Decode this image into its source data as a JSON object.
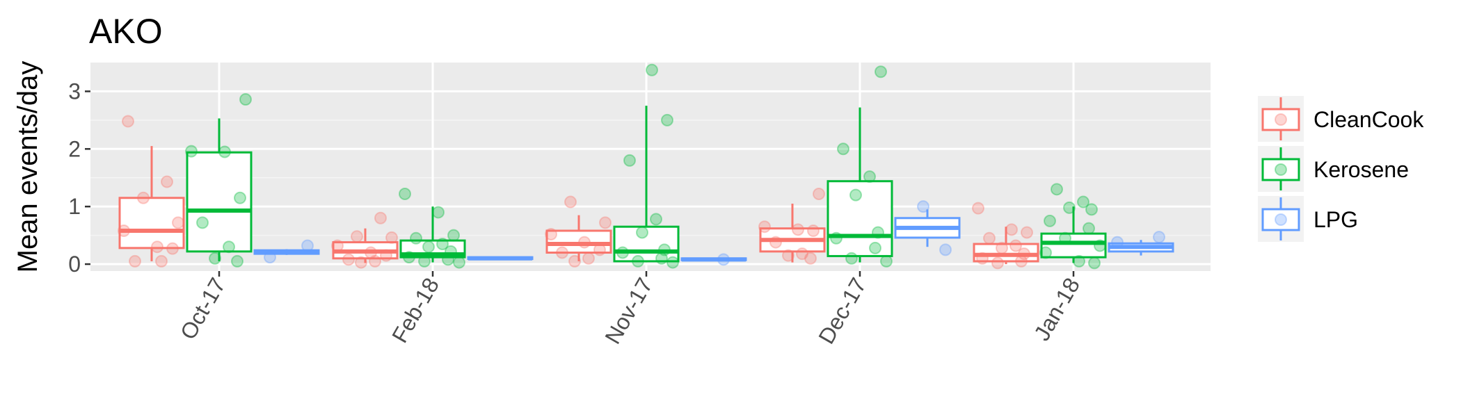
{
  "chart_data": {
    "type": "box",
    "title": "AKO",
    "xlabel": "",
    "ylabel": "Mean events/day",
    "categories": [
      "Oct-17",
      "Feb-18",
      "Nov-17",
      "Dec-17",
      "Jan-18"
    ],
    "yticks": [
      0,
      1,
      2,
      3
    ],
    "ylim": [
      -0.12,
      3.5
    ],
    "grid": true,
    "legend_placement": "right",
    "series": [
      {
        "name": "CleanCook",
        "color": "#F8766D",
        "boxes": [
          {
            "category": "Oct-17",
            "min": 0.05,
            "q1": 0.28,
            "median": 0.58,
            "q3": 1.15,
            "max": 2.05
          },
          {
            "category": "Feb-18",
            "min": 0.02,
            "q1": 0.1,
            "median": 0.22,
            "q3": 0.38,
            "max": 0.62
          },
          {
            "category": "Nov-17",
            "min": 0.05,
            "q1": 0.2,
            "median": 0.35,
            "q3": 0.58,
            "max": 0.85
          },
          {
            "category": "Dec-17",
            "min": 0.03,
            "q1": 0.22,
            "median": 0.42,
            "q3": 0.62,
            "max": 1.05
          },
          {
            "category": "Jan-18",
            "min": 0.0,
            "q1": 0.05,
            "median": 0.16,
            "q3": 0.35,
            "max": 0.65
          }
        ],
        "points": [
          {
            "category": "Oct-17",
            "y": [
              2.48,
              1.43,
              1.15,
              0.72,
              0.58,
              0.3,
              0.27,
              0.05,
              0.05
            ]
          },
          {
            "category": "Feb-18",
            "y": [
              0.8,
              0.48,
              0.46,
              0.32,
              0.2,
              0.15,
              0.08,
              0.05,
              0.03
            ]
          },
          {
            "category": "Nov-17",
            "y": [
              1.08,
              0.72,
              0.52,
              0.38,
              0.25,
              0.2,
              0.1,
              0.05
            ]
          },
          {
            "category": "Dec-17",
            "y": [
              1.22,
              0.65,
              0.6,
              0.58,
              0.38,
              0.18,
              0.15,
              0.1
            ]
          },
          {
            "category": "Jan-18",
            "y": [
              0.97,
              0.6,
              0.55,
              0.45,
              0.32,
              0.28,
              0.18,
              0.1,
              0.05,
              0.02
            ]
          }
        ]
      },
      {
        "name": "Kerosene",
        "color": "#00BA38",
        "boxes": [
          {
            "category": "Oct-17",
            "min": 0.05,
            "q1": 0.22,
            "median": 0.93,
            "q3": 1.94,
            "max": 2.53
          },
          {
            "category": "Feb-18",
            "min": 0.03,
            "q1": 0.12,
            "median": 0.17,
            "q3": 0.41,
            "max": 1.0
          },
          {
            "category": "Nov-17",
            "min": 0.03,
            "q1": 0.05,
            "median": 0.22,
            "q3": 0.65,
            "max": 2.75
          },
          {
            "category": "Dec-17",
            "min": 0.03,
            "q1": 0.14,
            "median": 0.49,
            "q3": 1.44,
            "max": 2.72
          },
          {
            "category": "Jan-18",
            "min": 0.02,
            "q1": 0.12,
            "median": 0.37,
            "q3": 0.53,
            "max": 1.0
          }
        ],
        "points": [
          {
            "category": "Oct-17",
            "y": [
              2.86,
              1.96,
              1.95,
              1.15,
              0.72,
              0.3,
              0.1,
              0.05
            ]
          },
          {
            "category": "Feb-18",
            "y": [
              1.22,
              0.9,
              0.5,
              0.45,
              0.35,
              0.3,
              0.22,
              0.12,
              0.08,
              0.05,
              0.03
            ]
          },
          {
            "category": "Nov-17",
            "y": [
              3.37,
              2.5,
              1.8,
              0.78,
              0.55,
              0.25,
              0.2,
              0.1,
              0.05,
              0.03
            ]
          },
          {
            "category": "Dec-17",
            "y": [
              3.34,
              2.0,
              1.52,
              1.2,
              0.55,
              0.45,
              0.28,
              0.1,
              0.05
            ]
          },
          {
            "category": "Jan-18",
            "y": [
              1.3,
              1.08,
              0.98,
              0.95,
              0.75,
              0.62,
              0.45,
              0.32,
              0.2,
              0.05,
              0.02
            ]
          }
        ]
      },
      {
        "name": "LPG",
        "color": "#619CFF",
        "boxes": [
          {
            "category": "Oct-17",
            "min": 0.16,
            "q1": 0.18,
            "median": 0.21,
            "q3": 0.24,
            "max": 0.26
          },
          {
            "category": "Feb-18",
            "min": 0.08,
            "q1": 0.09,
            "median": 0.1,
            "q3": 0.12,
            "max": 0.13
          },
          {
            "category": "Nov-17",
            "min": 0.06,
            "q1": 0.07,
            "median": 0.08,
            "q3": 0.1,
            "max": 0.11
          },
          {
            "category": "Dec-17",
            "min": 0.3,
            "q1": 0.46,
            "median": 0.63,
            "q3": 0.8,
            "max": 0.95
          },
          {
            "category": "Jan-18",
            "min": 0.15,
            "q1": 0.22,
            "median": 0.3,
            "q3": 0.36,
            "max": 0.42
          }
        ],
        "points": [
          {
            "category": "Oct-17",
            "y": [
              0.32,
              0.12
            ]
          },
          {
            "category": "Feb-18",
            "y": []
          },
          {
            "category": "Nov-17",
            "y": [
              0.08
            ]
          },
          {
            "category": "Dec-17",
            "y": [
              1.0,
              0.25
            ]
          },
          {
            "category": "Jan-18",
            "y": [
              0.47,
              0.38
            ]
          }
        ]
      }
    ]
  }
}
